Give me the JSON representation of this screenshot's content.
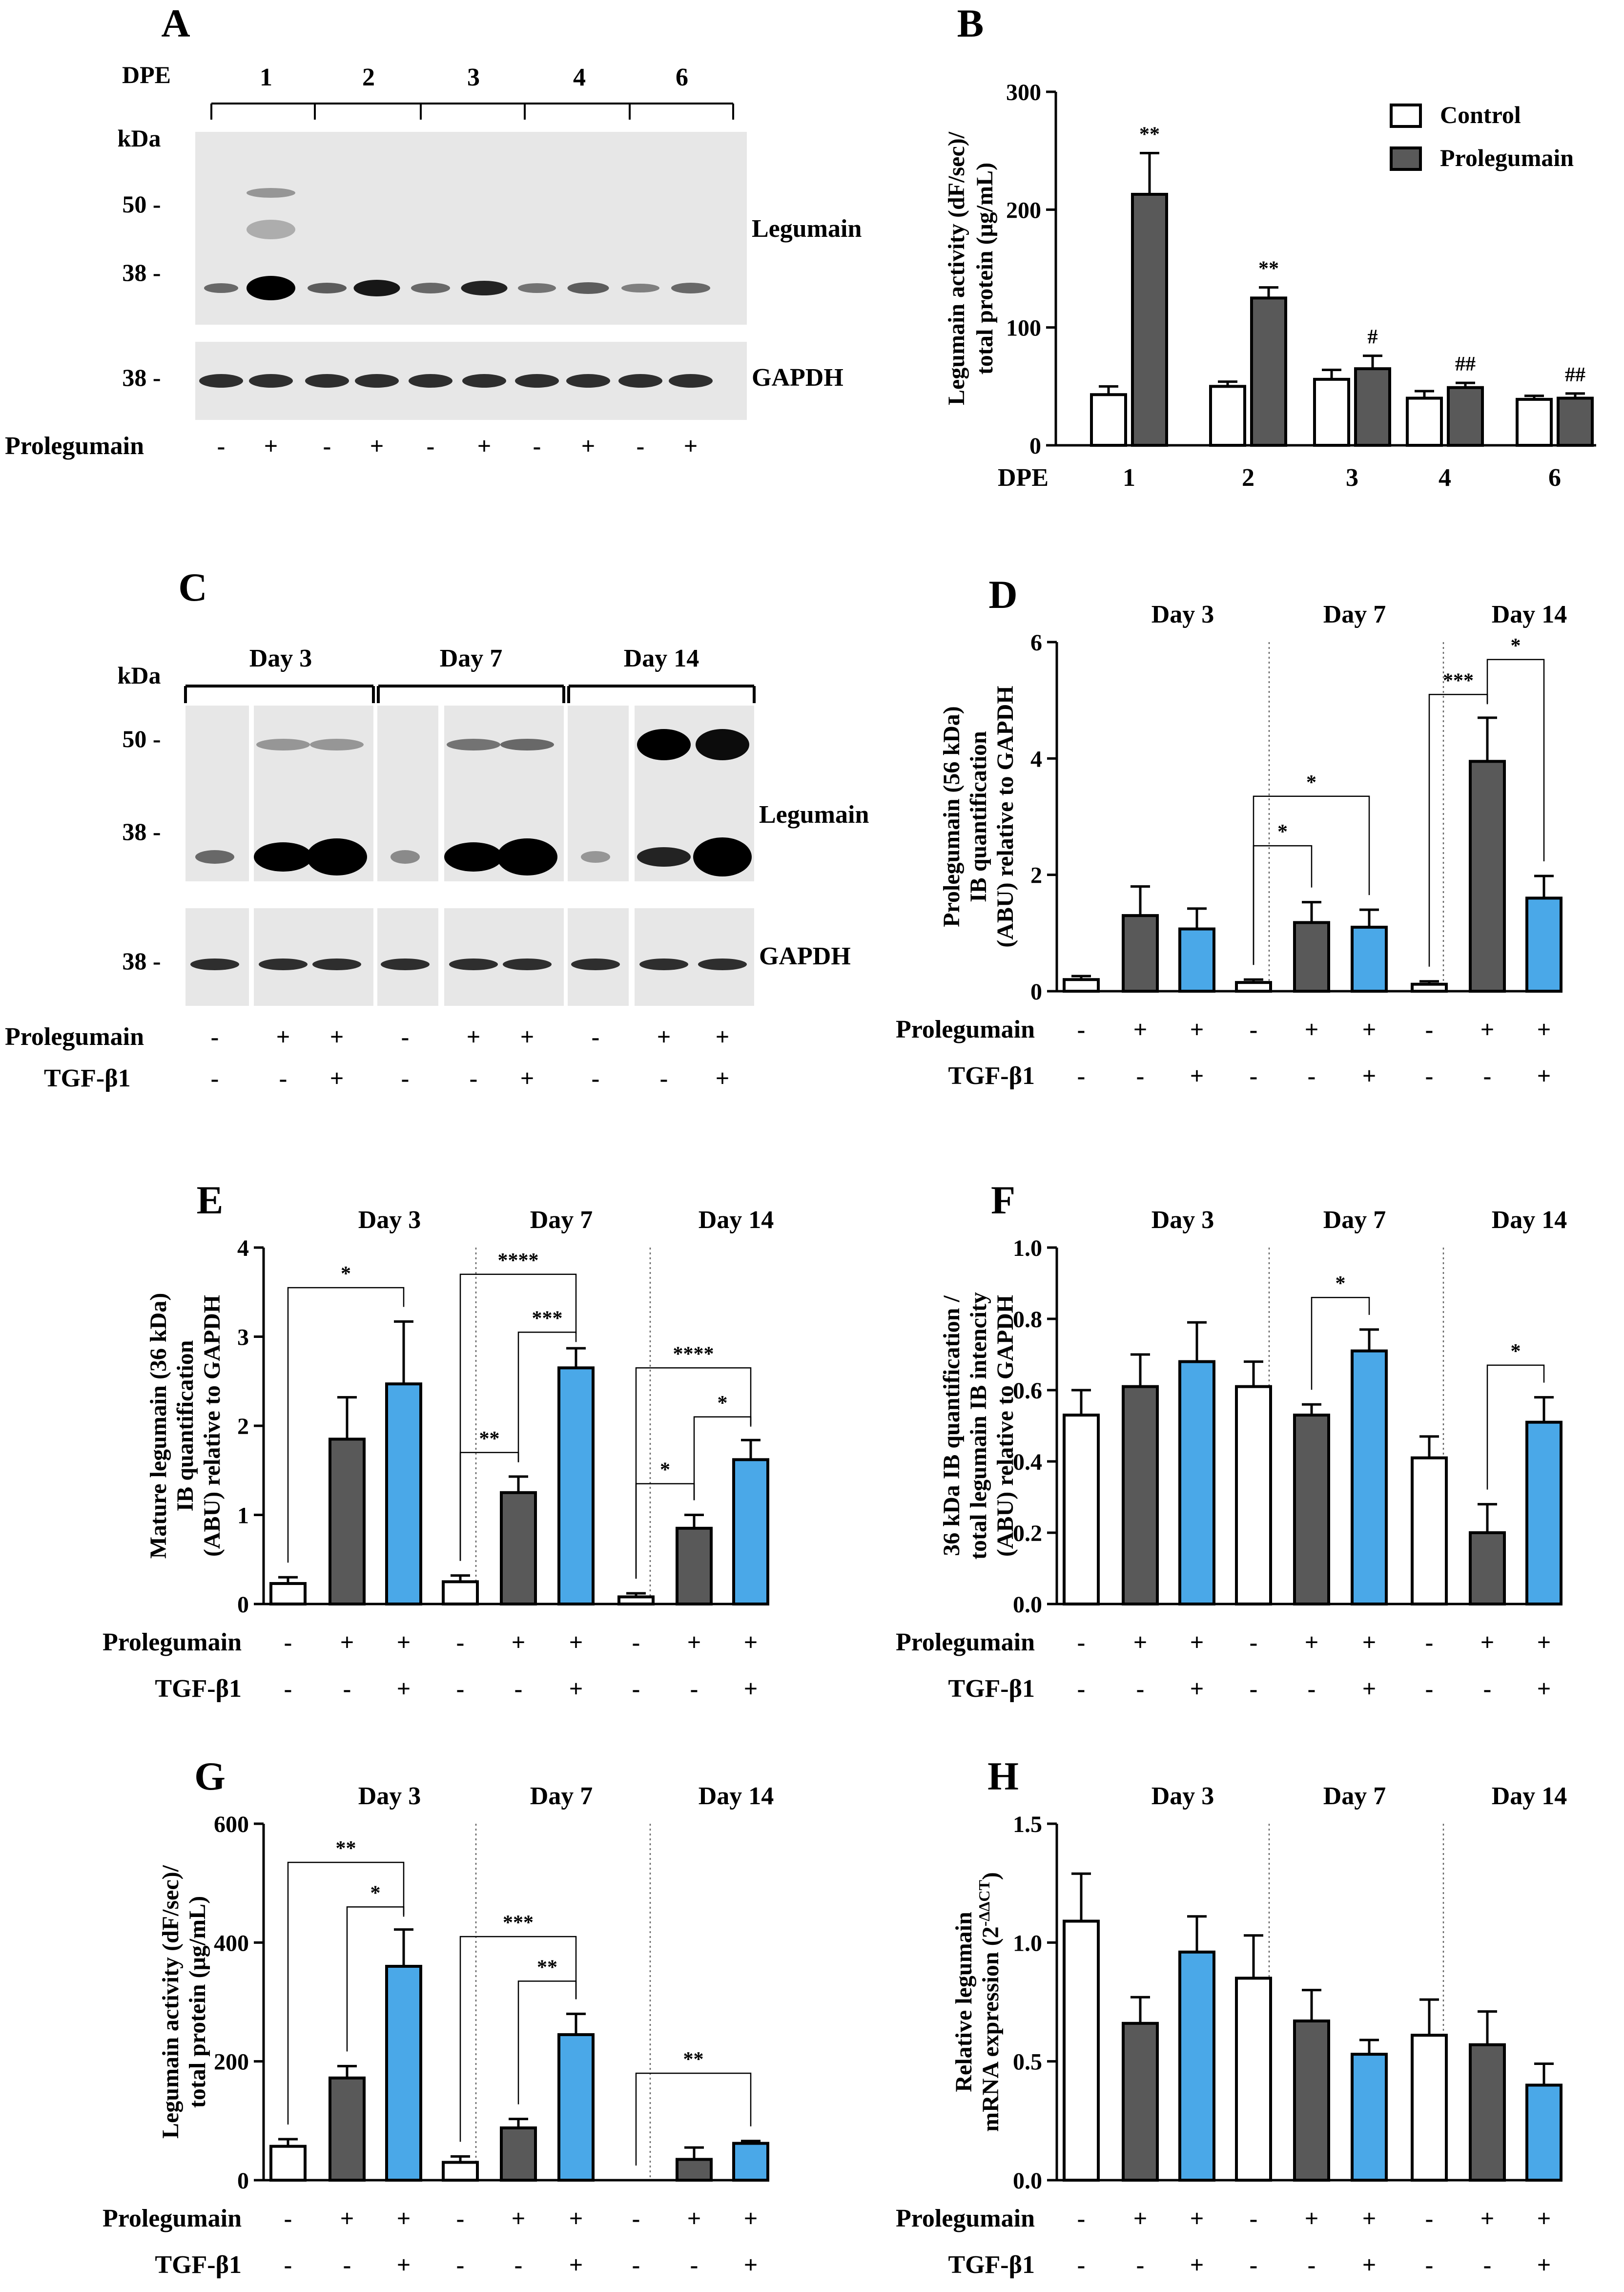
{
  "figure": {
    "blots": {
      "A": {
        "panel_label": "A",
        "dpe_label": "DPE",
        "dpe_values": [
          "1",
          "2",
          "3",
          "4",
          "6"
        ],
        "kda_label": "kDa",
        "markers": [
          "50 -",
          "38 -"
        ],
        "gapdh_marker": "38 -",
        "legumain_label": "Legumain",
        "gapdh_label": "GAPDH",
        "row_label": "Prolegumain",
        "row_signs": [
          "-",
          "+",
          "-",
          "+",
          "-",
          "+",
          "-",
          "+",
          "-",
          "+"
        ]
      },
      "C": {
        "panel_label": "C",
        "days": [
          "Day 3",
          "Day 7",
          "Day 14"
        ],
        "kda_label": "kDa",
        "markers": [
          "50 -",
          "38 -"
        ],
        "gapdh_marker": "38 -",
        "legumain_label": "Legumain",
        "gapdh_label": "GAPDH",
        "prolegumain_label": "Prolegumain",
        "tgf_label": "TGF-β1",
        "prolegumain_signs": [
          "-",
          "+",
          "+",
          "-",
          "+",
          "+",
          "-",
          "+",
          "+"
        ],
        "tgf_signs": [
          "-",
          "-",
          "+",
          "-",
          "-",
          "+",
          "-",
          "-",
          "+"
        ]
      }
    },
    "colors": {
      "control": "#ffffff",
      "prolegumain": "#595959",
      "tgf": "#4aa8e8",
      "blot_bg": "#e7e7e7"
    }
  },
  "chart_data": [
    {
      "id": "B",
      "panel_label": "B",
      "type": "bar",
      "ylabel_lines": [
        "Legumain activity (dF/sec)/",
        "total protein (μg/mL)"
      ],
      "ylim": [
        0,
        300
      ],
      "yticks": [
        0,
        100,
        200,
        300
      ],
      "tick_labels": [
        "0",
        "100",
        "200",
        "300"
      ],
      "xlabel": "DPE",
      "categories": [
        "1",
        "2",
        "3",
        "4",
        "6"
      ],
      "legend": {
        "position": "top-right",
        "entries": [
          "Control",
          "Prolegumain"
        ]
      },
      "series": [
        {
          "name": "Control",
          "values": [
            43,
            50,
            56,
            40,
            39
          ],
          "errors": [
            7,
            4,
            8,
            6,
            3
          ]
        },
        {
          "name": "Prolegumain",
          "values": [
            213,
            125,
            65,
            49,
            40
          ],
          "errors": [
            35,
            9,
            11,
            4,
            4
          ]
        }
      ],
      "annotations": [
        "**",
        "**",
        "#",
        "##",
        "##"
      ]
    },
    {
      "id": "D",
      "panel_label": "D",
      "type": "bar",
      "ylabel_lines": [
        "Prolegumain (56 kDa)",
        "IB quantification",
        "(ABU) relative to GAPDH"
      ],
      "ylim": [
        0,
        6
      ],
      "yticks": [
        0,
        2,
        4,
        6
      ],
      "tick_labels": [
        "0",
        "2",
        "4",
        "6"
      ],
      "groups": [
        "Day 3",
        "Day 7",
        "Day 14"
      ],
      "values": [
        0.2,
        1.3,
        1.07,
        0.15,
        1.18,
        1.1,
        0.12,
        3.95,
        1.6
      ],
      "errors": [
        0.06,
        0.5,
        0.35,
        0.05,
        0.35,
        0.3,
        0.05,
        0.75,
        0.38
      ],
      "kinds": [
        "c",
        "p",
        "t",
        "c",
        "p",
        "t",
        "c",
        "p",
        "t"
      ],
      "brackets": [
        {
          "from": 3,
          "to": 4,
          "y": 2.5,
          "label": "*"
        },
        {
          "from": 3,
          "to": 5,
          "y": 3.35,
          "label": "*"
        },
        {
          "from": 6,
          "to": 7,
          "y": 5.1,
          "label": "***"
        },
        {
          "from": 7,
          "to": 8,
          "y": 5.7,
          "label": "*"
        }
      ],
      "prolegumain_label": "Prolegumain",
      "tgf_label": "TGF-β1",
      "prolegumain_signs": [
        "-",
        "+",
        "+",
        "-",
        "+",
        "+",
        "-",
        "+",
        "+"
      ],
      "tgf_signs": [
        "-",
        "-",
        "+",
        "-",
        "-",
        "+",
        "-",
        "-",
        "+"
      ]
    },
    {
      "id": "E",
      "panel_label": "E",
      "type": "bar",
      "ylabel_lines": [
        "Mature legumain (36 kDa)",
        "IB quantification",
        "(ABU) relative to GAPDH"
      ],
      "ylim": [
        0,
        4
      ],
      "yticks": [
        0,
        1,
        2,
        3,
        4
      ],
      "tick_labels": [
        "0",
        "1",
        "2",
        "3",
        "4"
      ],
      "groups": [
        "Day 3",
        "Day 7",
        "Day 14"
      ],
      "values": [
        0.23,
        1.85,
        2.47,
        0.25,
        1.25,
        2.65,
        0.08,
        0.85,
        1.62
      ],
      "errors": [
        0.07,
        0.47,
        0.7,
        0.07,
        0.18,
        0.22,
        0.04,
        0.15,
        0.22
      ],
      "kinds": [
        "c",
        "p",
        "t",
        "c",
        "p",
        "t",
        "c",
        "p",
        "t"
      ],
      "brackets": [
        {
          "from": 0,
          "to": 2,
          "y": 3.55,
          "label": "*"
        },
        {
          "from": 3,
          "to": 4,
          "y": 1.7,
          "label": "**"
        },
        {
          "from": 4,
          "to": 5,
          "y": 3.05,
          "label": "***"
        },
        {
          "from": 3,
          "to": 5,
          "y": 3.7,
          "label": "****"
        },
        {
          "from": 6,
          "to": 7,
          "y": 1.35,
          "label": "*"
        },
        {
          "from": 7,
          "to": 8,
          "y": 2.1,
          "label": "*"
        },
        {
          "from": 6,
          "to": 8,
          "y": 2.65,
          "label": "****"
        }
      ],
      "prolegumain_label": "Prolegumain",
      "tgf_label": "TGF-β1",
      "prolegumain_signs": [
        "-",
        "+",
        "+",
        "-",
        "+",
        "+",
        "-",
        "+",
        "+"
      ],
      "tgf_signs": [
        "-",
        "-",
        "+",
        "-",
        "-",
        "+",
        "-",
        "-",
        "+"
      ]
    },
    {
      "id": "F",
      "panel_label": "F",
      "type": "bar",
      "ylabel_lines": [
        "36 kDa IB quantification /",
        "total legumain IB intencity",
        "(ABU) relative to GAPDH"
      ],
      "ylim": [
        0,
        1.0
      ],
      "yticks": [
        0,
        0.2,
        0.4,
        0.6,
        0.8,
        1.0
      ],
      "tick_labels": [
        "0.0",
        "0.2",
        "0.4",
        "0.6",
        "0.8",
        "1.0"
      ],
      "groups": [
        "Day 3",
        "Day 7",
        "Day 14"
      ],
      "values": [
        0.53,
        0.61,
        0.68,
        0.61,
        0.53,
        0.71,
        0.41,
        0.2,
        0.51
      ],
      "errors": [
        0.07,
        0.09,
        0.11,
        0.07,
        0.03,
        0.06,
        0.06,
        0.08,
        0.07
      ],
      "kinds": [
        "c",
        "p",
        "t",
        "c",
        "p",
        "t",
        "c",
        "p",
        "t"
      ],
      "brackets": [
        {
          "from": 4,
          "to": 5,
          "y": 0.86,
          "label": "*"
        },
        {
          "from": 7,
          "to": 8,
          "y": 0.67,
          "label": "*"
        }
      ],
      "prolegumain_label": "Prolegumain",
      "tgf_label": "TGF-β1",
      "prolegumain_signs": [
        "-",
        "+",
        "+",
        "-",
        "+",
        "+",
        "-",
        "+",
        "+"
      ],
      "tgf_signs": [
        "-",
        "-",
        "+",
        "-",
        "-",
        "+",
        "-",
        "-",
        "+"
      ]
    },
    {
      "id": "G",
      "panel_label": "G",
      "type": "bar",
      "ylabel_lines": [
        "Legumain activity (dF/sec)/",
        "total protein (μg/mL)"
      ],
      "ylim": [
        0,
        600
      ],
      "yticks": [
        0,
        200,
        400,
        600
      ],
      "tick_labels": [
        "0",
        "200",
        "400",
        "600"
      ],
      "groups": [
        "Day 3",
        "Day 7",
        "Day 14"
      ],
      "values": [
        57,
        172,
        360,
        30,
        88,
        245,
        0,
        35,
        62
      ],
      "errors": [
        12,
        20,
        62,
        10,
        15,
        35,
        0,
        20,
        4
      ],
      "kinds": [
        "c",
        "p",
        "t",
        "c",
        "p",
        "t",
        "c",
        "p",
        "t"
      ],
      "brackets": [
        {
          "from": 1,
          "to": 2,
          "y": 460,
          "label": "*"
        },
        {
          "from": 0,
          "to": 2,
          "y": 535,
          "label": "**"
        },
        {
          "from": 4,
          "to": 5,
          "y": 335,
          "label": "**"
        },
        {
          "from": 3,
          "to": 5,
          "y": 410,
          "label": "***"
        },
        {
          "from": 6,
          "to": 8,
          "y": 180,
          "label": "**"
        }
      ],
      "prolegumain_label": "Prolegumain",
      "tgf_label": "TGF-β1",
      "prolegumain_signs": [
        "-",
        "+",
        "+",
        "-",
        "+",
        "+",
        "-",
        "+",
        "+"
      ],
      "tgf_signs": [
        "-",
        "-",
        "+",
        "-",
        "-",
        "+",
        "-",
        "-",
        "+"
      ]
    },
    {
      "id": "H",
      "panel_label": "H",
      "type": "bar",
      "ylabel_lines": [
        "Relative legumain",
        "mRNA expression (2"
      ],
      "ylabel_sup": "-ΔΔCT",
      "ylabel_close": ")",
      "ylim": [
        0,
        1.5
      ],
      "yticks": [
        0,
        0.5,
        1.0,
        1.5
      ],
      "tick_labels": [
        "0.0",
        "0.5",
        "1.0",
        "1.5"
      ],
      "groups": [
        "Day 3",
        "Day 7",
        "Day 14"
      ],
      "values": [
        1.09,
        0.66,
        0.96,
        0.85,
        0.67,
        0.53,
        0.61,
        0.57,
        0.4
      ],
      "errors": [
        0.2,
        0.11,
        0.15,
        0.18,
        0.13,
        0.06,
        0.15,
        0.14,
        0.09
      ],
      "kinds": [
        "c",
        "p",
        "t",
        "c",
        "p",
        "t",
        "c",
        "p",
        "t"
      ],
      "brackets": [],
      "prolegumain_label": "Prolegumain",
      "tgf_label": "TGF-β1",
      "prolegumain_signs": [
        "-",
        "+",
        "+",
        "-",
        "+",
        "+",
        "-",
        "+",
        "+"
      ],
      "tgf_signs": [
        "-",
        "-",
        "+",
        "-",
        "-",
        "+",
        "-",
        "-",
        "+"
      ]
    }
  ]
}
